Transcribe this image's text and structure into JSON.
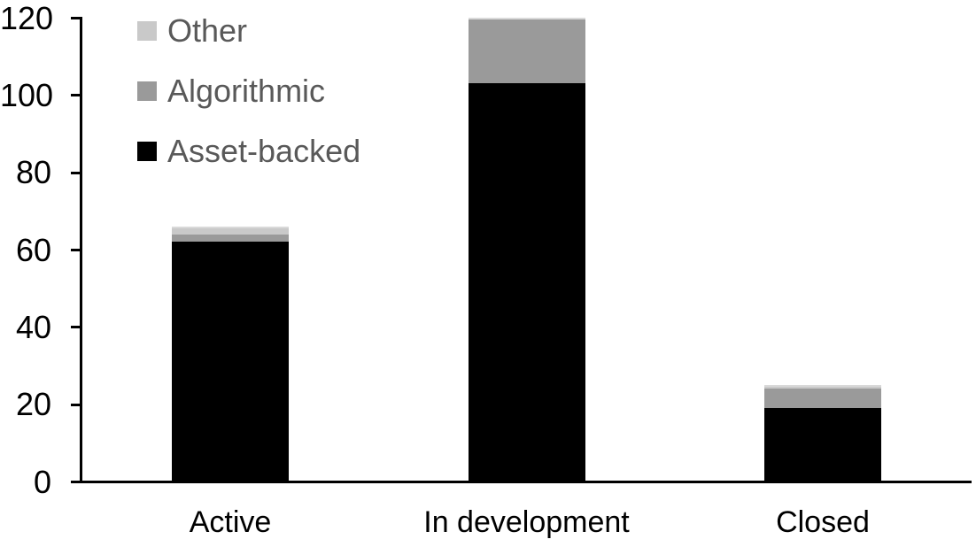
{
  "chart_data": {
    "type": "bar",
    "stacked": true,
    "title": "",
    "xlabel": "",
    "ylabel": "",
    "categories": [
      "Active",
      "In development",
      "Closed"
    ],
    "series": [
      {
        "name": "Asset-backed",
        "color": "#000000",
        "values": [
          62,
          103,
          19
        ]
      },
      {
        "name": "Algorithmic",
        "color": "#9a9a9a",
        "values": [
          2,
          17,
          5
        ]
      },
      {
        "name": "Other",
        "color": "#c9c9c9",
        "values": [
          2,
          0,
          1
        ]
      }
    ],
    "totals": [
      66,
      120,
      25
    ],
    "ylim": [
      0,
      120
    ],
    "yticks": [
      0,
      20,
      40,
      60,
      80,
      100,
      120
    ],
    "grid": false,
    "legend_position": "top-left-inside",
    "legend_order": [
      "Other",
      "Algorithmic",
      "Asset-backed"
    ]
  },
  "axis": {
    "y_tick_labels": [
      "0",
      "20",
      "40",
      "60",
      "80",
      "100",
      "120"
    ],
    "x_labels": [
      "Active",
      "In development",
      "Closed"
    ]
  },
  "legend": {
    "items": [
      {
        "label": "Other",
        "color": "#c9c9c9"
      },
      {
        "label": "Algorithmic",
        "color": "#9a9a9a"
      },
      {
        "label": "Asset-backed",
        "color": "#000000"
      }
    ]
  },
  "colors": {
    "background": "#ffffff",
    "axis": "#000000",
    "tick_label_text": "#000000",
    "category_label_text": "#000000",
    "legend_text": "#595959",
    "segment_top_edge": "#d9d9d9"
  }
}
